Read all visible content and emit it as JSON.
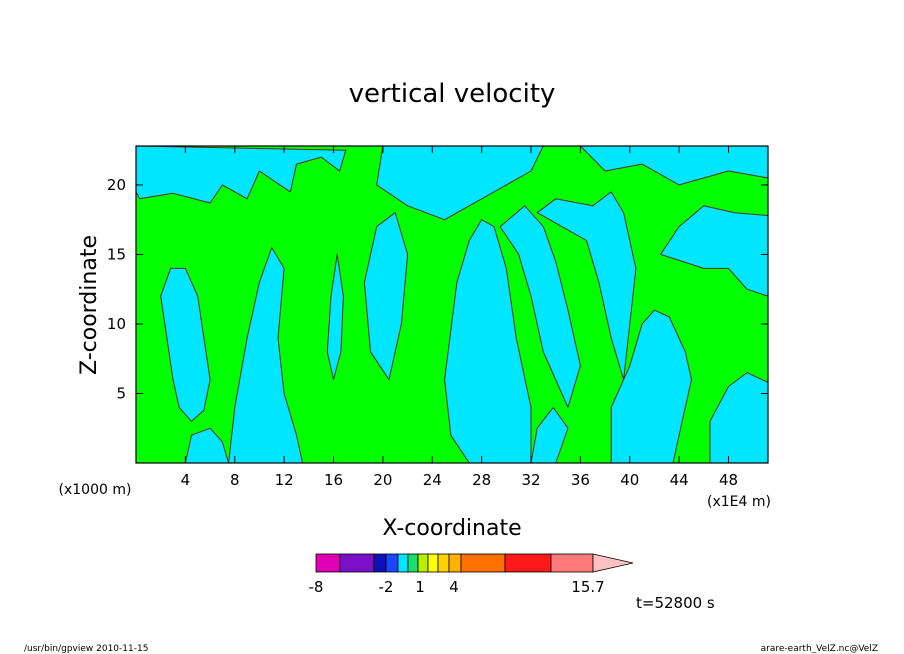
{
  "chart_data": {
    "type": "filled-contour",
    "title": "vertical velocity",
    "xlabel": "X-coordinate",
    "ylabel": "Z-coordinate",
    "x_unit": "(x1E4 m)",
    "y_unit": "(x1000 m)",
    "x_ticks": [
      4,
      8,
      12,
      16,
      20,
      24,
      28,
      32,
      36,
      40,
      44,
      48
    ],
    "y_ticks": [
      5,
      10,
      15,
      20
    ],
    "xlim": [
      0,
      51.2
    ],
    "ylim": [
      0,
      22.8
    ],
    "grid": false,
    "time_label": "t=52800 s",
    "colorbar": {
      "labels": [
        "-8",
        "-2",
        "1",
        "4",
        "15.7"
      ],
      "label_values": [
        -8,
        -2,
        1,
        4,
        15.7
      ],
      "colors": [
        "#e000b4",
        "#7a10c8",
        "#1010b8",
        "#1a46ff",
        "#00e6ff",
        "#18e070",
        "#b8f000",
        "#ffff00",
        "#ffd000",
        "#ffb000",
        "#ff7000",
        "#ff1a1a",
        "#ff7a7a",
        "#ffc0c0"
      ]
    },
    "field_colors": {
      "negative": "#00e6ff",
      "positive": "#00ff00",
      "contour": "#5a3020"
    },
    "regions": [
      {
        "sign": "negative",
        "polygon": [
          [
            0.3,
            19
          ],
          [
            3,
            19.4
          ],
          [
            6,
            18.7
          ],
          [
            7,
            20
          ],
          [
            9,
            19
          ],
          [
            10,
            21
          ],
          [
            12.5,
            19.5
          ],
          [
            13,
            21.5
          ],
          [
            15,
            22
          ],
          [
            16.5,
            21
          ],
          [
            17,
            22.5
          ],
          [
            0,
            22.8
          ],
          [
            0,
            19.5
          ]
        ]
      },
      {
        "sign": "negative",
        "polygon": [
          [
            2,
            12
          ],
          [
            2.5,
            9
          ],
          [
            3,
            6
          ],
          [
            3.5,
            4
          ],
          [
            4.5,
            3
          ],
          [
            5.5,
            3.8
          ],
          [
            6,
            6
          ],
          [
            5.5,
            9
          ],
          [
            5,
            12
          ],
          [
            4,
            14
          ],
          [
            2.8,
            14
          ]
        ]
      },
      {
        "sign": "negative",
        "polygon": [
          [
            4,
            0
          ],
          [
            4.5,
            2
          ],
          [
            6,
            2.5
          ],
          [
            7,
            1.5
          ],
          [
            7.5,
            0
          ]
        ]
      },
      {
        "sign": "negative",
        "polygon": [
          [
            7.5,
            0
          ],
          [
            8,
            4
          ],
          [
            9,
            9
          ],
          [
            10,
            13
          ],
          [
            11,
            15.5
          ],
          [
            12,
            14
          ],
          [
            11.5,
            9
          ],
          [
            12,
            5
          ],
          [
            13,
            2
          ],
          [
            13.5,
            0
          ]
        ]
      },
      {
        "sign": "negative",
        "polygon": [
          [
            15.5,
            8
          ],
          [
            15.8,
            12
          ],
          [
            16.3,
            15
          ],
          [
            16.8,
            12
          ],
          [
            16.6,
            8
          ],
          [
            16,
            6
          ]
        ]
      },
      {
        "sign": "negative",
        "polygon": [
          [
            19.5,
            20
          ],
          [
            22,
            18.5
          ],
          [
            25,
            17.5
          ],
          [
            29,
            19.5
          ],
          [
            32,
            21
          ],
          [
            33,
            22.8
          ],
          [
            20,
            22.8
          ]
        ]
      },
      {
        "sign": "negative",
        "polygon": [
          [
            18.5,
            13
          ],
          [
            19.5,
            17
          ],
          [
            21,
            18
          ],
          [
            22,
            15
          ],
          [
            21.5,
            10
          ],
          [
            20.5,
            6
          ],
          [
            19,
            8
          ]
        ]
      },
      {
        "sign": "negative",
        "polygon": [
          [
            25,
            6
          ],
          [
            25.5,
            2
          ],
          [
            27,
            0
          ],
          [
            32,
            0
          ],
          [
            32,
            4
          ],
          [
            30.8,
            9
          ],
          [
            30,
            14
          ],
          [
            29,
            17
          ],
          [
            28,
            17.5
          ],
          [
            27,
            16
          ],
          [
            26,
            13
          ]
        ]
      },
      {
        "sign": "negative",
        "polygon": [
          [
            29.5,
            17
          ],
          [
            31,
            15
          ],
          [
            32,
            12
          ],
          [
            33,
            8
          ],
          [
            35,
            4
          ],
          [
            36,
            7
          ],
          [
            35,
            11
          ],
          [
            34,
            14.5
          ],
          [
            33,
            17
          ],
          [
            31.5,
            18.5
          ]
        ]
      },
      {
        "sign": "negative",
        "polygon": [
          [
            32,
            0
          ],
          [
            34,
            0
          ],
          [
            35,
            2.5
          ],
          [
            33.8,
            4
          ],
          [
            32.5,
            2.5
          ]
        ]
      },
      {
        "sign": "negative",
        "polygon": [
          [
            32.5,
            18
          ],
          [
            34,
            19
          ],
          [
            37,
            18.5
          ],
          [
            38.5,
            19.5
          ],
          [
            39.5,
            18
          ],
          [
            40.5,
            14
          ],
          [
            40,
            10
          ],
          [
            39.5,
            6
          ],
          [
            38.5,
            9
          ],
          [
            37.5,
            13
          ],
          [
            36.5,
            16
          ],
          [
            34.5,
            17
          ]
        ]
      },
      {
        "sign": "negative",
        "polygon": [
          [
            38.5,
            0
          ],
          [
            38.5,
            4
          ],
          [
            40,
            7
          ],
          [
            41,
            10
          ],
          [
            42,
            11
          ],
          [
            43.2,
            10.5
          ],
          [
            44.5,
            8
          ],
          [
            45,
            6
          ],
          [
            44.5,
            4
          ],
          [
            44,
            2
          ],
          [
            43.5,
            0
          ]
        ]
      },
      {
        "sign": "negative",
        "polygon": [
          [
            42.5,
            15
          ],
          [
            44,
            17
          ],
          [
            46,
            18.5
          ],
          [
            48.5,
            18
          ],
          [
            51.2,
            17.8
          ],
          [
            51.2,
            12
          ],
          [
            49.5,
            12.5
          ],
          [
            48,
            14
          ],
          [
            46,
            14
          ]
        ]
      },
      {
        "sign": "negative",
        "polygon": [
          [
            46.5,
            0
          ],
          [
            46.5,
            3
          ],
          [
            48,
            5.5
          ],
          [
            49.5,
            6.5
          ],
          [
            51.2,
            5.8
          ],
          [
            51.2,
            0
          ]
        ]
      },
      {
        "sign": "negative",
        "polygon": [
          [
            36,
            22.8
          ],
          [
            38,
            21
          ],
          [
            41,
            21.5
          ],
          [
            44,
            20
          ],
          [
            48,
            21
          ],
          [
            51.2,
            20.5
          ],
          [
            51.2,
            22.8
          ]
        ]
      }
    ]
  },
  "footer": {
    "left": "/usr/bin/gpview 2010-11-15",
    "right": "arare-earth_VelZ.nc@VelZ"
  }
}
